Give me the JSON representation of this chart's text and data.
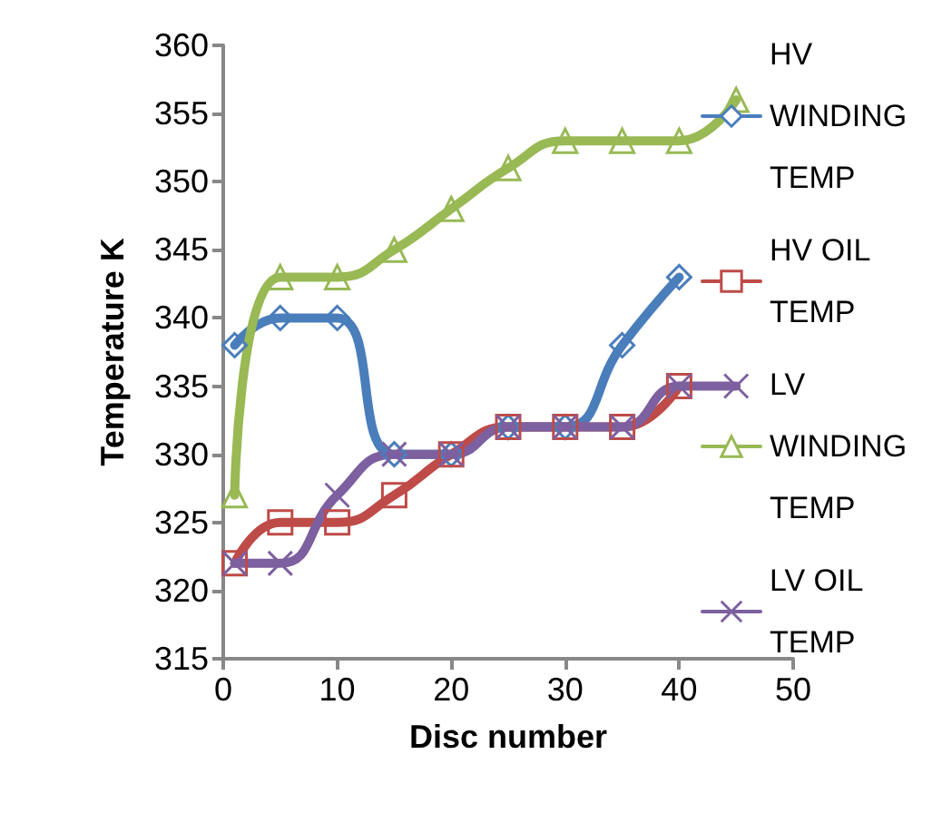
{
  "chart_data": {
    "type": "line",
    "xlabel": "Disc number",
    "ylabel": "Temperature K",
    "xlim": [
      0,
      50
    ],
    "xticks": [
      0,
      10,
      20,
      30,
      40,
      50
    ],
    "ylim": [
      315,
      360
    ],
    "yticks": [
      315,
      320,
      325,
      330,
      335,
      340,
      345,
      350,
      355,
      360
    ],
    "grid": false,
    "legend": "right",
    "series": [
      {
        "name": "HV WINDING TEMP",
        "color": "#4a7ebb",
        "marker": "diamond",
        "x": [
          1,
          5,
          10,
          15,
          20,
          25,
          30,
          35,
          40
        ],
        "values": [
          338,
          340,
          340,
          330,
          330,
          332,
          332,
          338,
          343
        ]
      },
      {
        "name": "HV OIL TEMP",
        "color": "#be4b48",
        "marker": "square",
        "x": [
          1,
          5,
          10,
          15,
          20,
          25,
          30,
          35,
          40
        ],
        "values": [
          322,
          325,
          325,
          327,
          330,
          332,
          332,
          332,
          335
        ]
      },
      {
        "name": "LV WINDING TEMP",
        "color": "#98b954",
        "marker": "triangle",
        "x": [
          1,
          5,
          10,
          15,
          20,
          25,
          30,
          35,
          40,
          45
        ],
        "values": [
          327,
          343,
          343,
          345,
          348,
          351,
          353,
          353,
          353,
          356
        ]
      },
      {
        "name": "LV OIL TEMP",
        "color": "#7d60a0",
        "marker": "cross",
        "x": [
          1,
          5,
          10,
          15,
          20,
          25,
          30,
          35,
          40,
          45
        ],
        "values": [
          322,
          322,
          327,
          330,
          330,
          332,
          332,
          332,
          335,
          335
        ]
      }
    ]
  }
}
